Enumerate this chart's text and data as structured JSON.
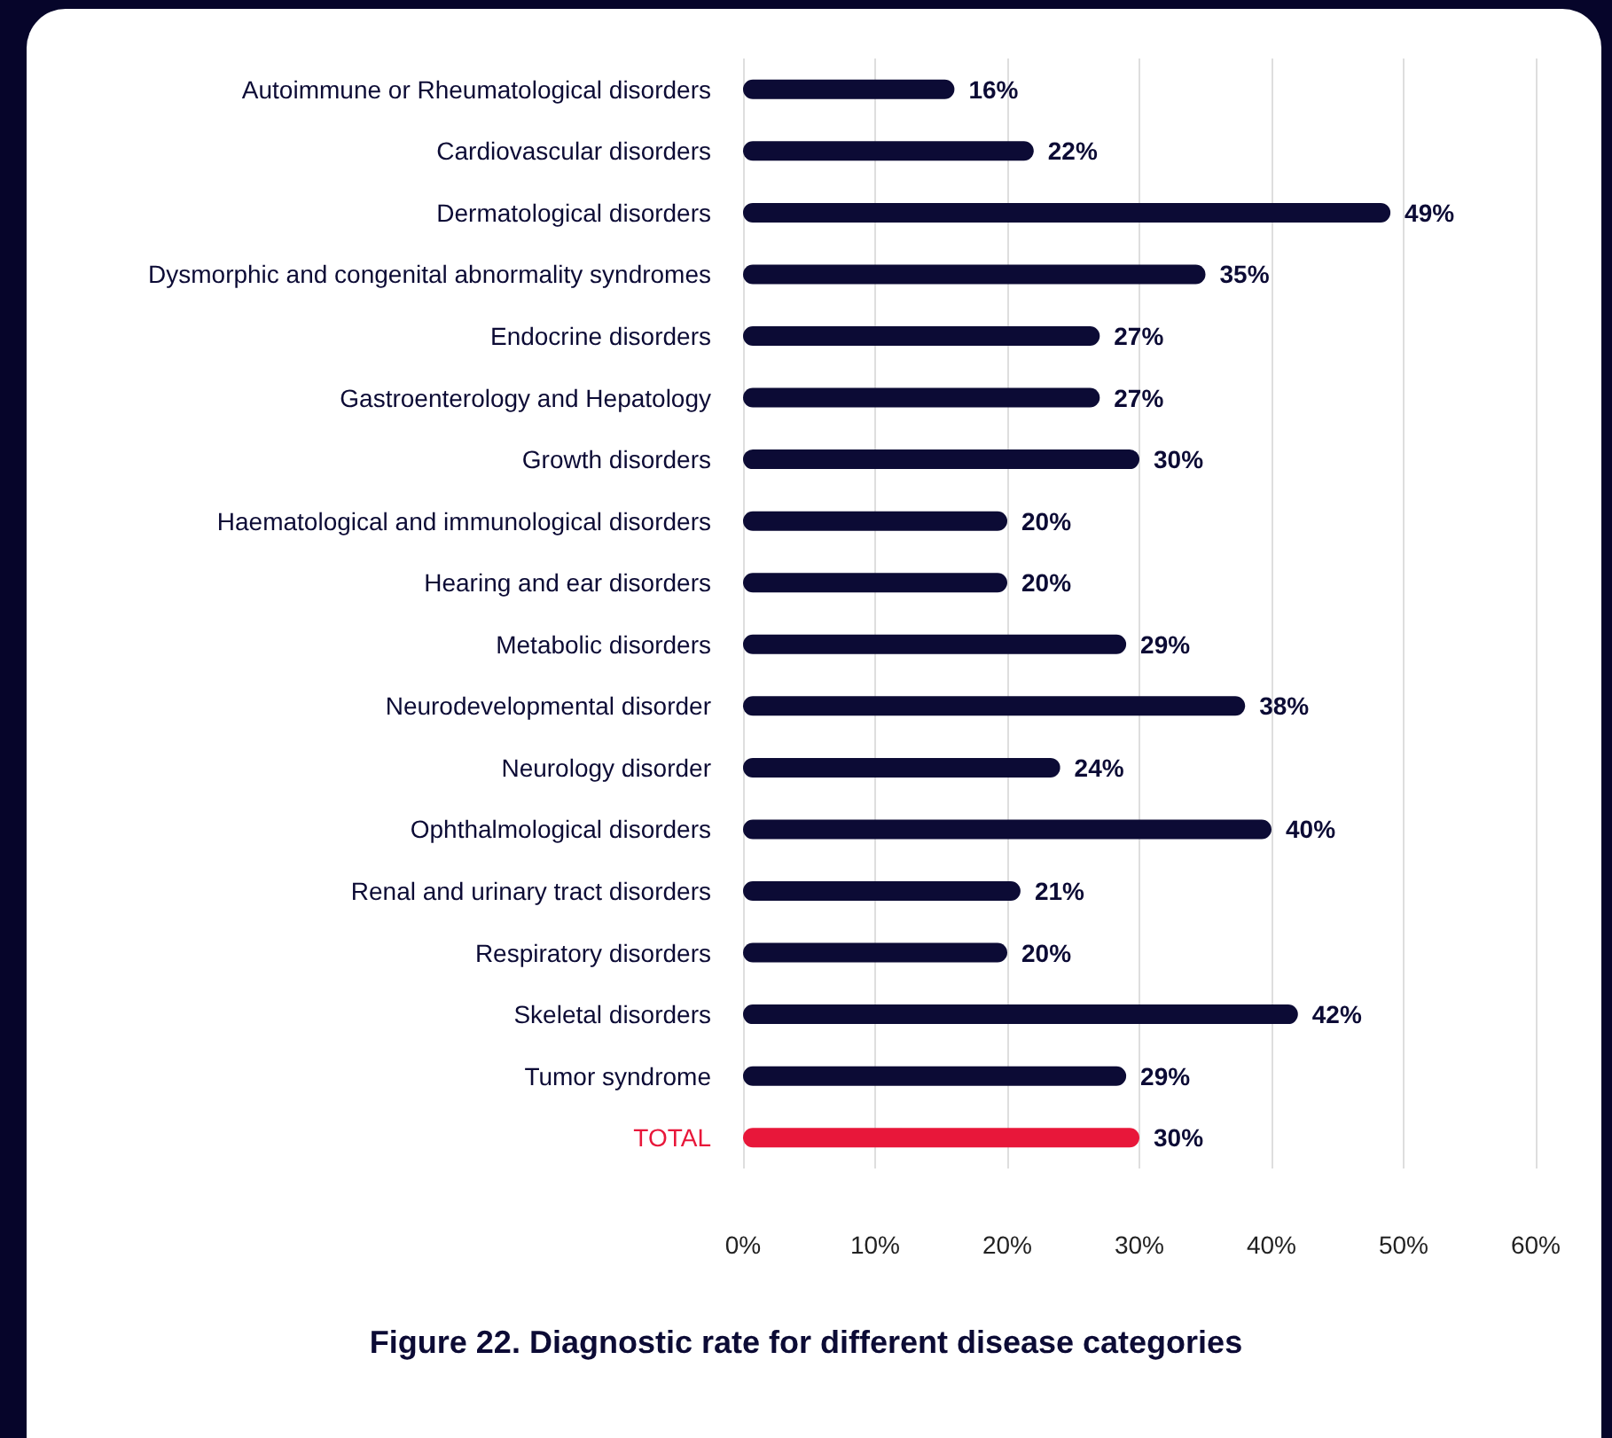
{
  "chart_data": {
    "type": "bar",
    "orientation": "horizontal",
    "title": "Figure 22. Diagnostic rate for different disease categories",
    "categories": [
      "Autoimmune or Rheumatological disorders",
      "Cardiovascular disorders",
      "Dermatological disorders",
      "Dysmorphic and congenital abnormality syndromes",
      "Endocrine disorders",
      "Gastroenterology and Hepatology",
      "Growth disorders",
      "Haematological and immunological disorders",
      "Hearing and ear disorders",
      "Metabolic disorders",
      "Neurodevelopmental disorder",
      "Neurology disorder",
      "Ophthalmological disorders",
      "Renal and urinary tract disorders",
      "Respiratory disorders",
      "Skeletal disorders",
      "Tumor syndrome",
      "TOTAL"
    ],
    "values": [
      16,
      22,
      49,
      35,
      27,
      27,
      30,
      20,
      20,
      29,
      38,
      24,
      40,
      21,
      20,
      42,
      29,
      30
    ],
    "value_labels": [
      "16%",
      "22%",
      "49%",
      "35%",
      "27%",
      "27%",
      "30%",
      "20%",
      "20%",
      "29%",
      "38%",
      "24%",
      "40%",
      "21%",
      "20%",
      "42%",
      "29%",
      "30%"
    ],
    "colors": [
      "#0c0b35",
      "#0c0b35",
      "#0c0b35",
      "#0c0b35",
      "#0c0b35",
      "#0c0b35",
      "#0c0b35",
      "#0c0b35",
      "#0c0b35",
      "#0c0b35",
      "#0c0b35",
      "#0c0b35",
      "#0c0b35",
      "#0c0b35",
      "#0c0b35",
      "#0c0b35",
      "#0c0b35",
      "#e8173a"
    ],
    "xlim": [
      0,
      60
    ],
    "xticks": [
      {
        "value": 0,
        "label": "0%"
      },
      {
        "value": 10,
        "label": "10%"
      },
      {
        "value": 20,
        "label": "20%"
      },
      {
        "value": 30,
        "label": "30%"
      },
      {
        "value": 40,
        "label": "40%"
      },
      {
        "value": 50,
        "label": "50%"
      },
      {
        "value": 60,
        "label": "60%"
      }
    ],
    "grid": "x"
  }
}
